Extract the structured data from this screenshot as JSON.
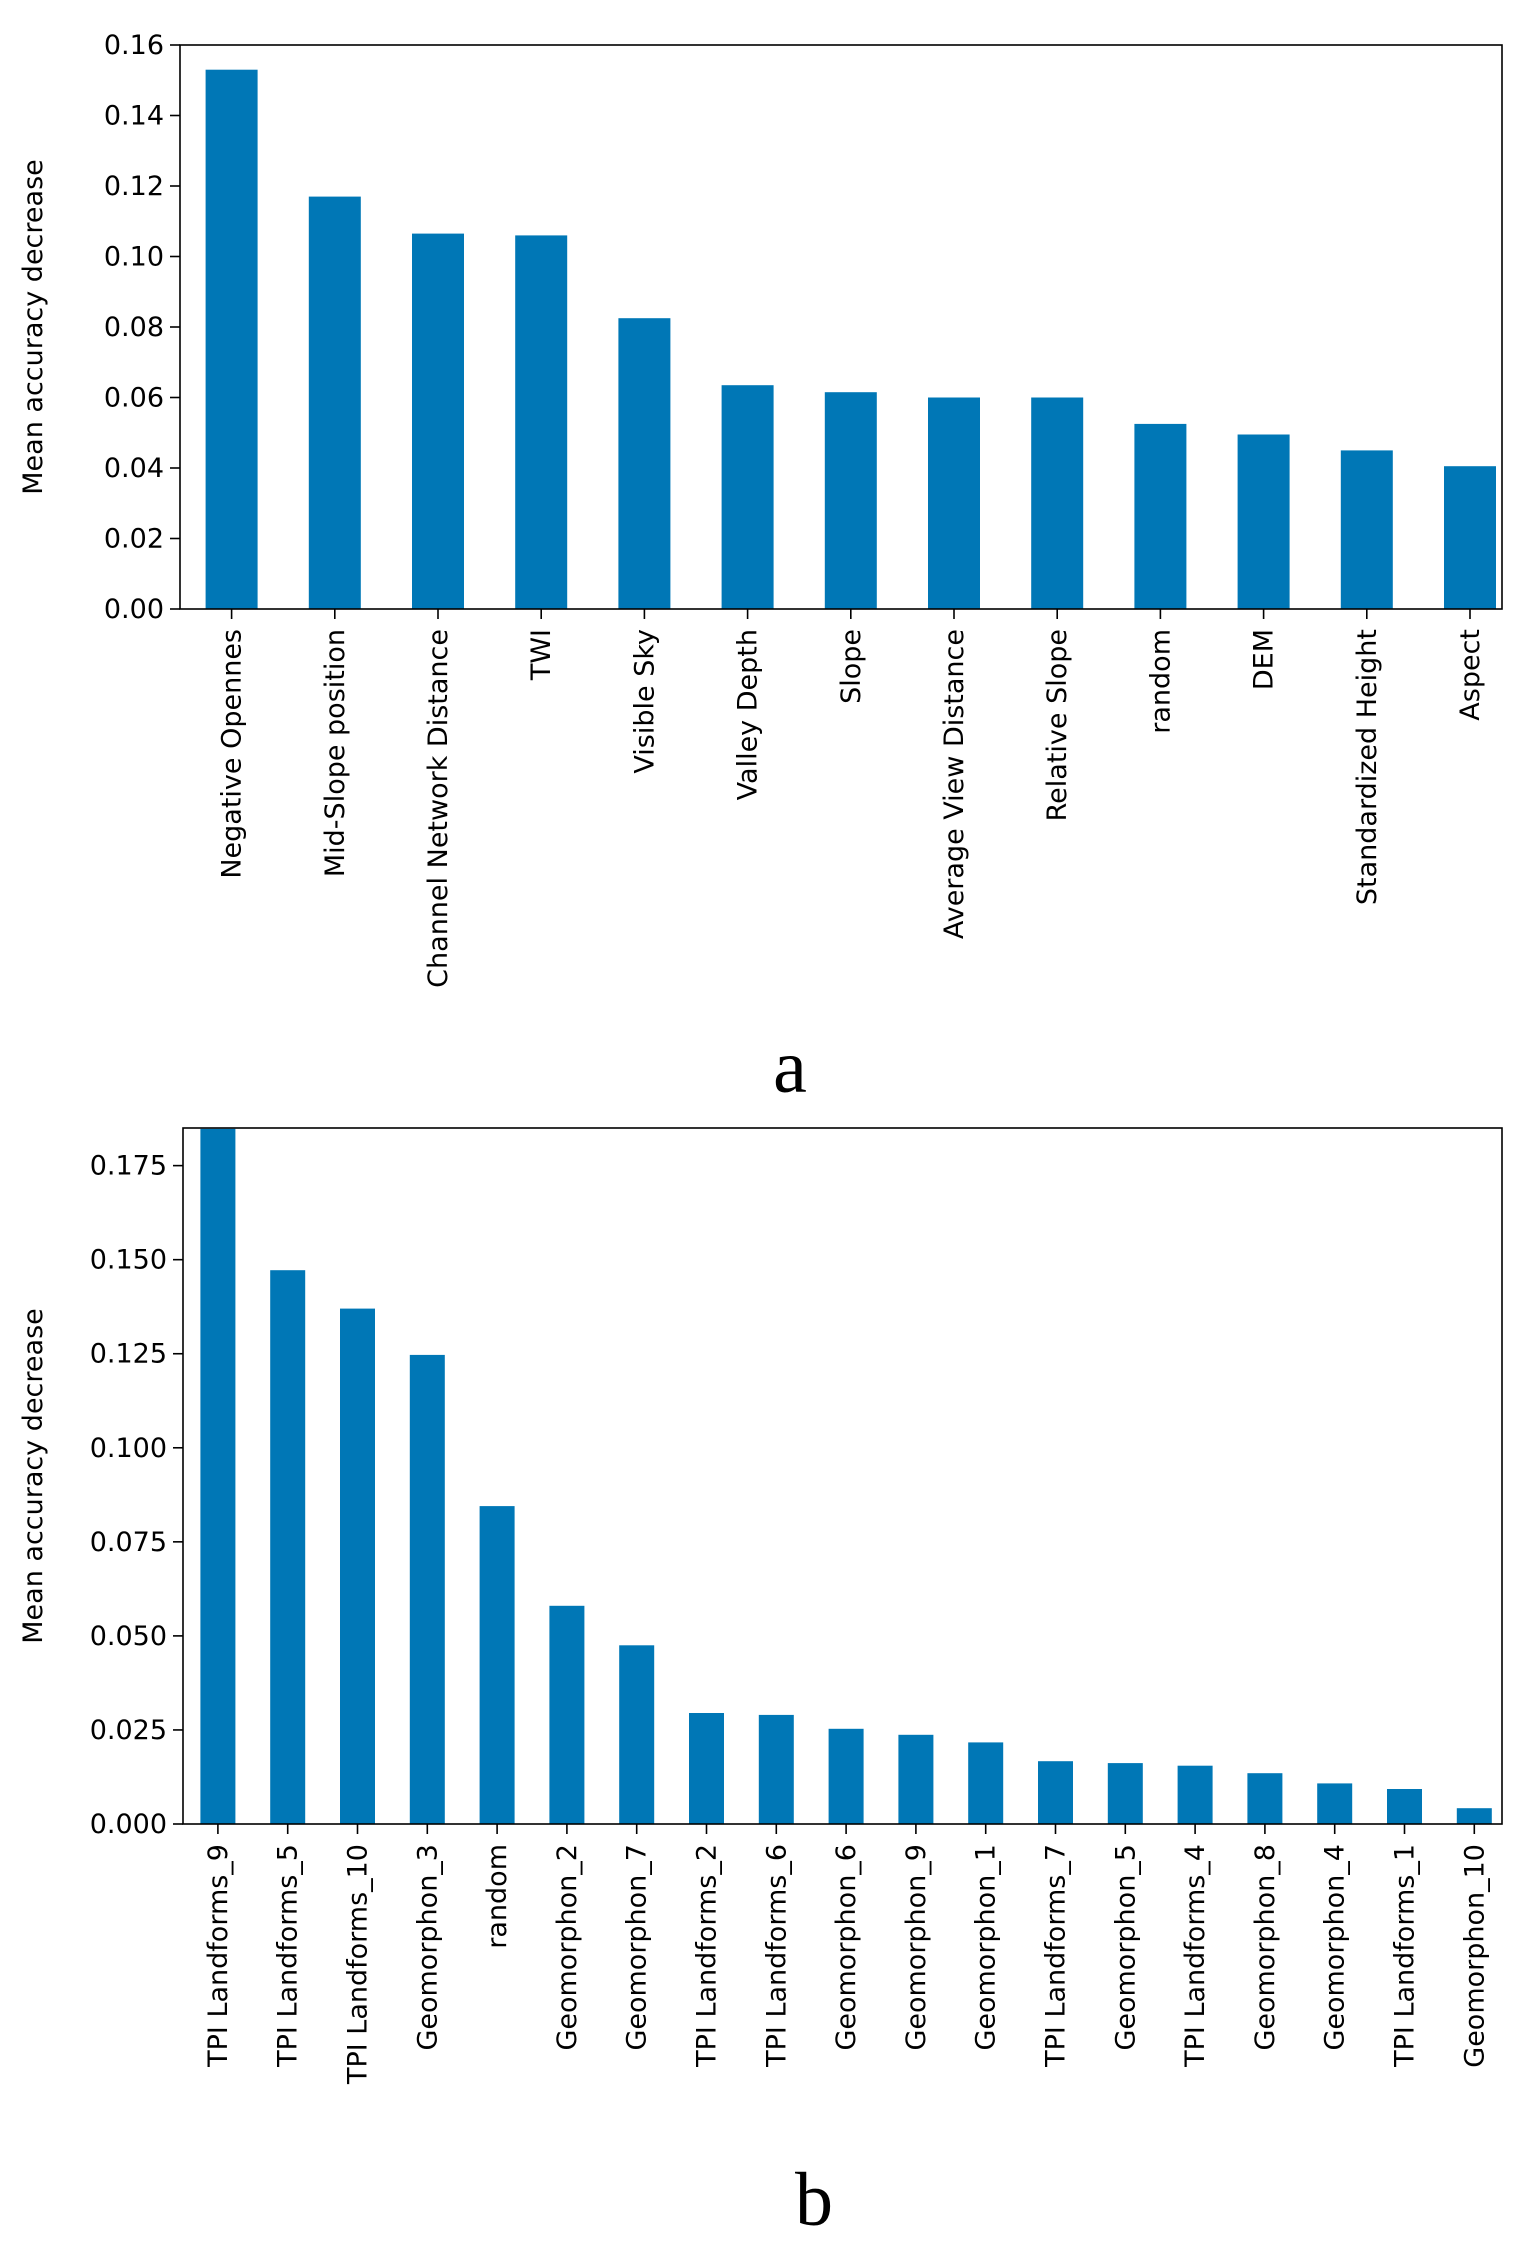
{
  "figure": {
    "panel_labels": [
      "a",
      "b"
    ]
  },
  "chart_data": [
    {
      "type": "bar",
      "panel": "a",
      "title": "",
      "xlabel": "",
      "ylabel": "Mean accuracy decrease",
      "ylim": [
        0,
        0.16
      ],
      "yticks": [
        "0.00",
        "0.02",
        "0.04",
        "0.06",
        "0.08",
        "0.10",
        "0.12",
        "0.14",
        "0.16"
      ],
      "grid": false,
      "bar_color": "#0077b6",
      "categories": [
        "Negative Opennes",
        "Mid-Slope position",
        "Channel Network Distance",
        "TWI",
        "Visible Sky",
        "Valley Depth",
        "Slope",
        "Average View Distance",
        "Relative Slope",
        "random",
        "DEM",
        "Standardized Height",
        "Aspect"
      ],
      "values": [
        0.153,
        0.117,
        0.1065,
        0.106,
        0.0825,
        0.0635,
        0.0615,
        0.06,
        0.06,
        0.0525,
        0.0495,
        0.045,
        0.0405
      ]
    },
    {
      "type": "bar",
      "panel": "b",
      "title": "",
      "xlabel": "",
      "ylabel": "Mean accuracy decrease",
      "ylim": [
        0,
        0.185
      ],
      "yticks": [
        "0.000",
        "0.025",
        "0.050",
        "0.075",
        "0.100",
        "0.125",
        "0.150",
        "0.175"
      ],
      "grid": false,
      "bar_color": "#0077b6",
      "categories": [
        "TPI Landforms_9",
        "TPI Landforms_5",
        "TPI Landforms_10",
        "Geomorphon_3",
        "random",
        "Geomorphon_2",
        "Geomorphon_7",
        "TPI Landforms_2",
        "TPI Landforms_6",
        "Geomorphon_6",
        "Geomorphon_9",
        "Geomorphon_1",
        "TPI Landforms_7",
        "Geomorphon_5",
        "TPI Landforms_4",
        "Geomorphon_8",
        "Geomorphon_4",
        "TPI Landforms_1",
        "Geomorphon_10"
      ],
      "values": [
        0.1848,
        0.1472,
        0.137,
        0.1247,
        0.0845,
        0.058,
        0.0475,
        0.0295,
        0.029,
        0.0253,
        0.0237,
        0.0217,
        0.0167,
        0.0162,
        0.0155,
        0.0135,
        0.0108,
        0.0093,
        0.0042
      ]
    }
  ]
}
